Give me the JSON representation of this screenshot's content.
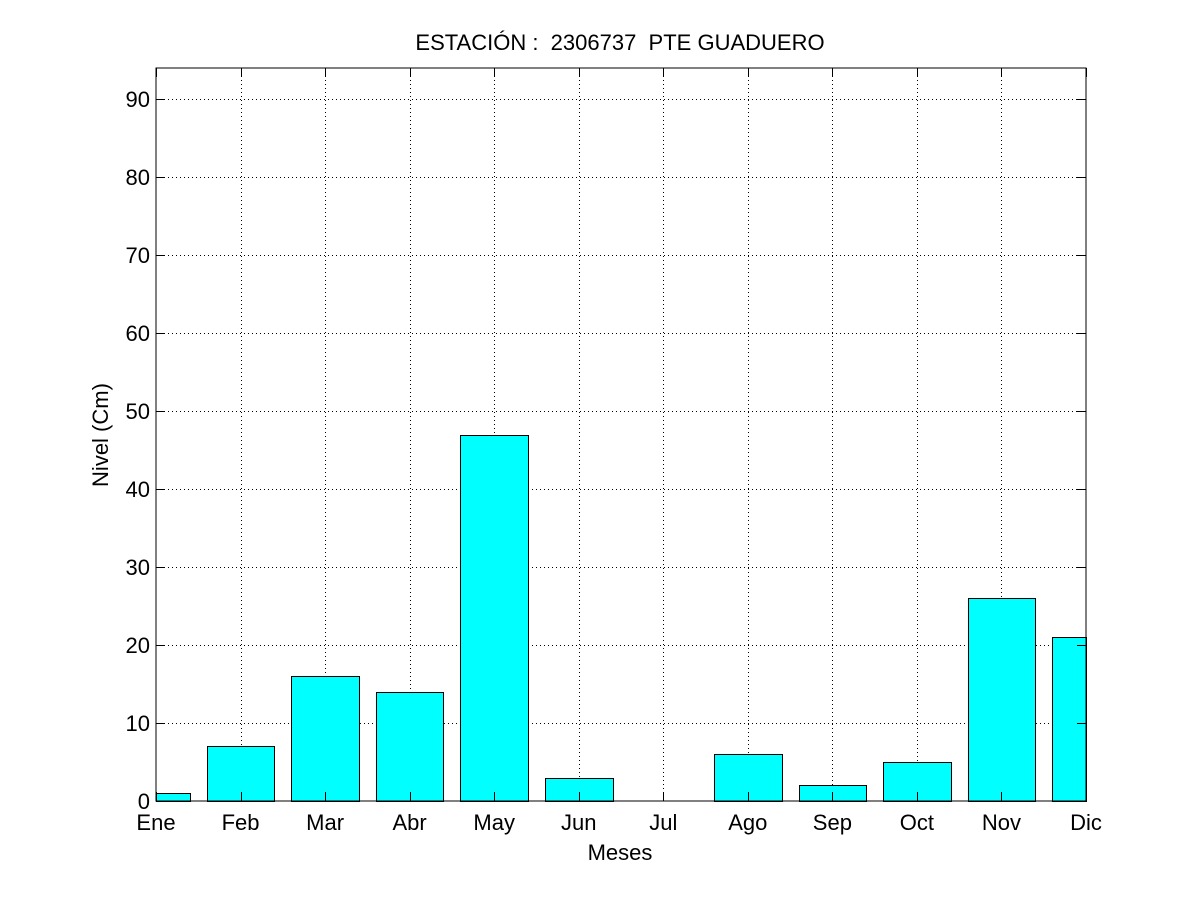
{
  "chart_data": {
    "type": "bar",
    "title": "ESTACIÓN :  2306737  PTE GUADUERO",
    "xlabel": "Meses",
    "ylabel": "Nivel (Cm)",
    "categories": [
      "Ene",
      "Feb",
      "Mar",
      "Abr",
      "May",
      "Jun",
      "Jul",
      "Ago",
      "Sep",
      "Oct",
      "Nov",
      "Dic"
    ],
    "values": [
      1,
      7,
      16,
      14,
      47,
      3,
      0,
      6,
      2,
      5,
      26,
      21
    ],
    "ylim": [
      0,
      94
    ],
    "yticks": [
      0,
      10,
      20,
      30,
      40,
      50,
      60,
      70,
      80,
      90
    ],
    "grid": true,
    "bar_color": "#00ffff",
    "edge_color": "#000000"
  }
}
